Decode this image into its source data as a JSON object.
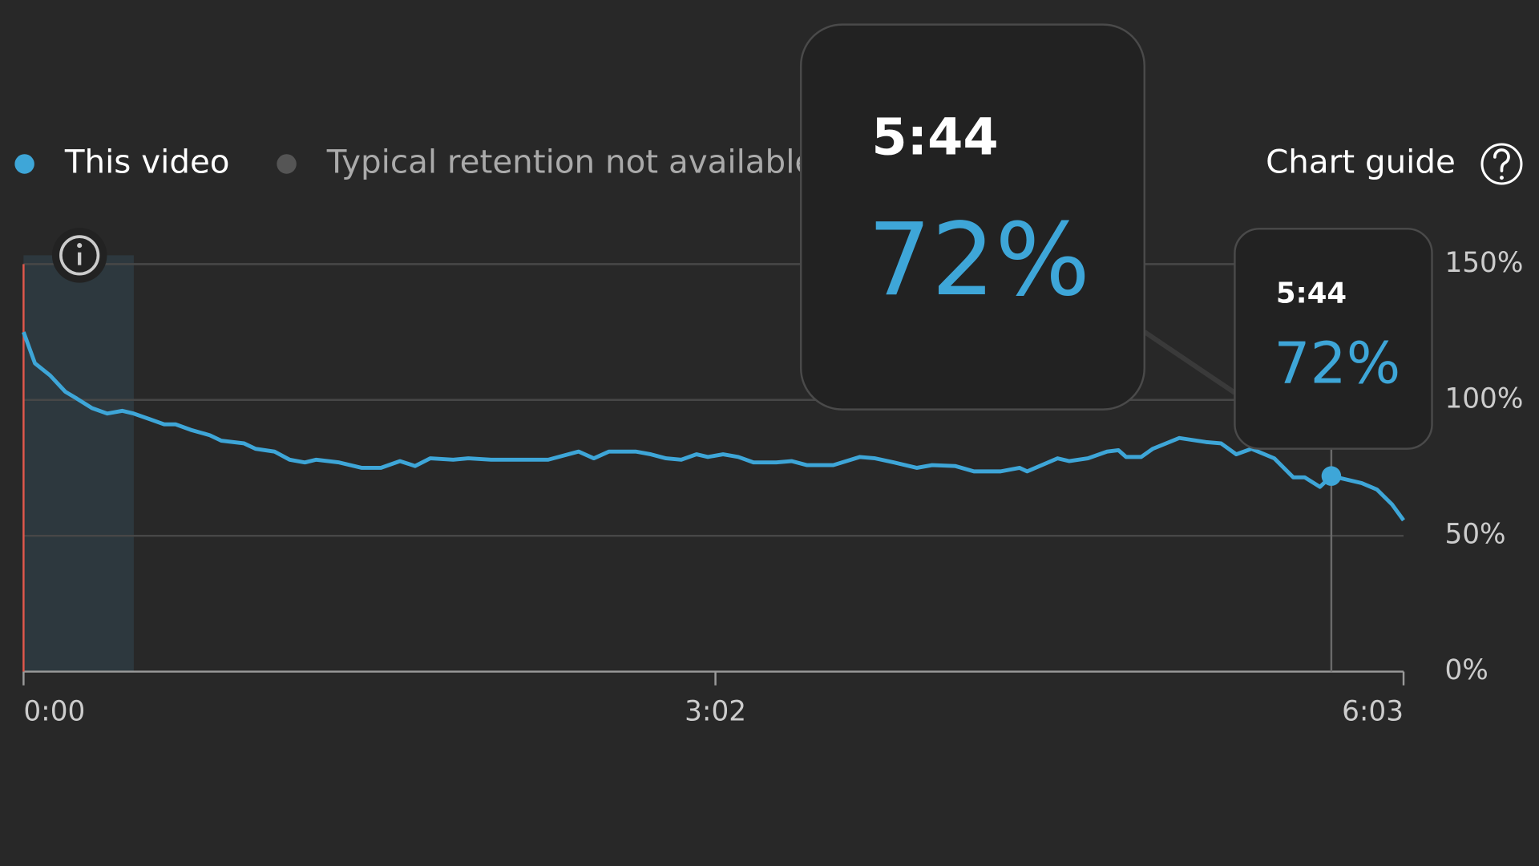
{
  "chart_data": {
    "type": "line",
    "legend": [
      "This video",
      "Typical retention not available"
    ],
    "chart_guide": "Chart guide",
    "x": [
      0,
      3,
      7,
      11,
      14,
      18,
      22,
      26,
      29,
      33,
      37,
      40,
      44,
      49,
      52,
      58,
      61,
      66,
      70,
      74,
      77,
      83,
      89,
      94,
      99,
      103,
      107,
      113,
      117,
      123,
      138,
      146,
      150,
      154,
      161,
      165,
      169,
      173,
      177,
      180,
      184,
      188,
      192,
      198,
      202,
      206,
      213,
      220,
      224,
      229,
      235,
      239,
      245,
      250,
      257,
      262,
      264,
      272,
      275,
      280,
      285,
      288,
      290,
      294,
      297,
      304,
      311,
      315,
      319,
      323,
      329,
      334,
      337,
      341,
      344,
      352,
      356,
      360,
      363
    ],
    "series": [
      {
        "name": "This video",
        "color": "#3ea6d8",
        "values": [
          125,
          113.5,
          109,
          103,
          100.5,
          97,
          95,
          96,
          95,
          93,
          91,
          91,
          89,
          87,
          85,
          84,
          82,
          81,
          78,
          77,
          78,
          77,
          75,
          75,
          77.5,
          75.7,
          78.5,
          78,
          78.5,
          78,
          78,
          81,
          78.5,
          81,
          81,
          80,
          78.5,
          78,
          80,
          79,
          80,
          79,
          77,
          77,
          77.5,
          76,
          76,
          79,
          78.5,
          77,
          75,
          76,
          75.7,
          73.7,
          73.7,
          75,
          73.7,
          78.5,
          77.5,
          78.5,
          81,
          81.5,
          79,
          79,
          82,
          86,
          84.5,
          84,
          80,
          82,
          78.5,
          71.5,
          71.5,
          68,
          72,
          69.4,
          67,
          61.5,
          55.7
        ]
      }
    ],
    "secondary_color": "#555555",
    "xlim": [
      0,
      363
    ],
    "xticks": [
      {
        "value": 0,
        "label": "0:00"
      },
      {
        "value": 182,
        "label": "3:02"
      },
      {
        "value": 363,
        "label": "6:03"
      }
    ],
    "ylim": [
      0,
      150
    ],
    "yticks": [
      {
        "value": 0,
        "label": "0%"
      },
      {
        "value": 50,
        "label": "50%"
      },
      {
        "value": 100,
        "label": "100%"
      },
      {
        "value": 150,
        "label": "150%"
      }
    ],
    "grid": true,
    "shaded_range": [
      0,
      29
    ],
    "highlight_index": 74,
    "tooltip": {
      "time": "5:44",
      "value_label": "72%"
    }
  }
}
